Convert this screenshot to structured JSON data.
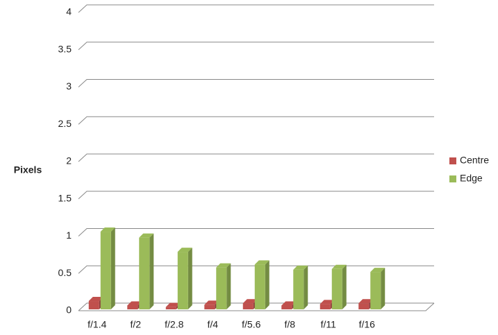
{
  "chart_data": {
    "type": "bar3d",
    "y_label": "Pixels",
    "categories": [
      "f/1.4",
      "f/2",
      "f/2.8",
      "f/4",
      "f/5.6",
      "f/8",
      "f/11",
      "f/16"
    ],
    "series": [
      {
        "name": "Centre",
        "color": "#c0504d",
        "values": [
          0.13,
          0.07,
          0.05,
          0.08,
          0.1,
          0.07,
          0.09,
          0.1
        ]
      },
      {
        "name": "Edge",
        "color": "#9bbb59",
        "values": [
          1.06,
          0.98,
          0.79,
          0.58,
          0.62,
          0.55,
          0.56,
          0.52
        ]
      }
    ],
    "ylim": [
      0,
      4
    ],
    "yticks": [
      0,
      0.5,
      1,
      1.5,
      2,
      2.5,
      3,
      3.5,
      4
    ],
    "grid": true,
    "legend": "right"
  }
}
